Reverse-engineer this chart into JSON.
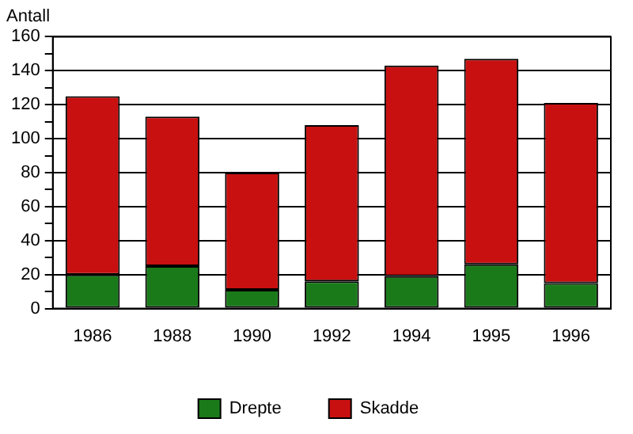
{
  "chart_data": {
    "type": "bar",
    "stacked": true,
    "ylabel": "Antall",
    "categories": [
      "1986",
      "1988",
      "1990",
      "1992",
      "1994",
      "1995",
      "1996"
    ],
    "series": [
      {
        "name": "Drepte",
        "color": "#1a7a1a",
        "values": [
          20,
          25,
          11,
          16,
          19,
          26,
          15
        ]
      },
      {
        "name": "Skadde",
        "color": "#c81010",
        "values": [
          105,
          88,
          69,
          92,
          124,
          121,
          106
        ]
      }
    ],
    "ylim": [
      0,
      160
    ],
    "yticks": [
      0,
      {
        "value": 10,
        "label": null
      },
      20,
      {
        "value": 30,
        "label": null
      },
      40,
      {
        "value": 50,
        "label": null
      },
      60,
      {
        "value": 70,
        "label": null
      },
      80,
      {
        "value": 90,
        "label": null
      },
      100,
      {
        "value": 110,
        "label": null
      },
      120,
      {
        "value": 130,
        "label": null
      },
      140,
      {
        "value": 150,
        "label": null
      },
      160
    ],
    "grid": "y",
    "legend": "bottom"
  }
}
